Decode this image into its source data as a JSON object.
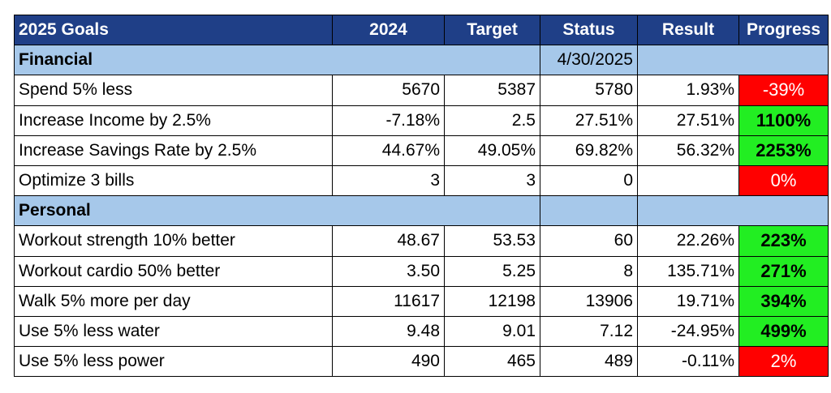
{
  "colors": {
    "header_bg": "#1f3f87",
    "header_text": "#ffffff",
    "section_bg": "#a6c8ea",
    "positive_bg": "#22ee22",
    "negative_bg": "#ff0000"
  },
  "headers": [
    "2025 Goals",
    "2024",
    "Target",
    "Status",
    "Result",
    "Progress"
  ],
  "sections": [
    {
      "label": "Financial",
      "status_date": "4/30/2025",
      "rows": [
        {
          "goal": "Spend 5% less",
          "y2024": "5670",
          "target": "5387",
          "status": "5780",
          "result": "1.93%",
          "progress": "-39%",
          "state": "neg"
        },
        {
          "goal": "Increase Income by 2.5%",
          "y2024": "-7.18%",
          "target": "2.5",
          "status": "27.51%",
          "result": "27.51%",
          "progress": "1100%",
          "state": "pos"
        },
        {
          "goal": "Increase Savings Rate by 2.5%",
          "y2024": "44.67%",
          "target": "49.05%",
          "status": "69.82%",
          "result": "56.32%",
          "progress": "2253%",
          "state": "pos"
        },
        {
          "goal": "Optimize 3 bills",
          "y2024": "3",
          "target": "3",
          "status": "0",
          "result": "",
          "progress": "0%",
          "state": "neg"
        }
      ]
    },
    {
      "label": "Personal",
      "status_date": "",
      "rows": [
        {
          "goal": "Workout strength 10% better",
          "y2024": "48.67",
          "target": "53.53",
          "status": "60",
          "result": "22.26%",
          "progress": "223%",
          "state": "pos"
        },
        {
          "goal": "Workout cardio 50% better",
          "y2024": "3.50",
          "target": "5.25",
          "status": "8",
          "result": "135.71%",
          "progress": "271%",
          "state": "pos"
        },
        {
          "goal": "Walk 5% more per day",
          "y2024": "11617",
          "target": "12198",
          "status": "13906",
          "result": "19.71%",
          "progress": "394%",
          "state": "pos"
        },
        {
          "goal": "Use 5% less water",
          "y2024": "9.48",
          "target": "9.01",
          "status": "7.12",
          "result": "-24.95%",
          "progress": "499%",
          "state": "pos"
        },
        {
          "goal": "Use 5% less power",
          "y2024": "490",
          "target": "465",
          "status": "489",
          "result": "-0.11%",
          "progress": "2%",
          "state": "neg"
        }
      ]
    }
  ]
}
